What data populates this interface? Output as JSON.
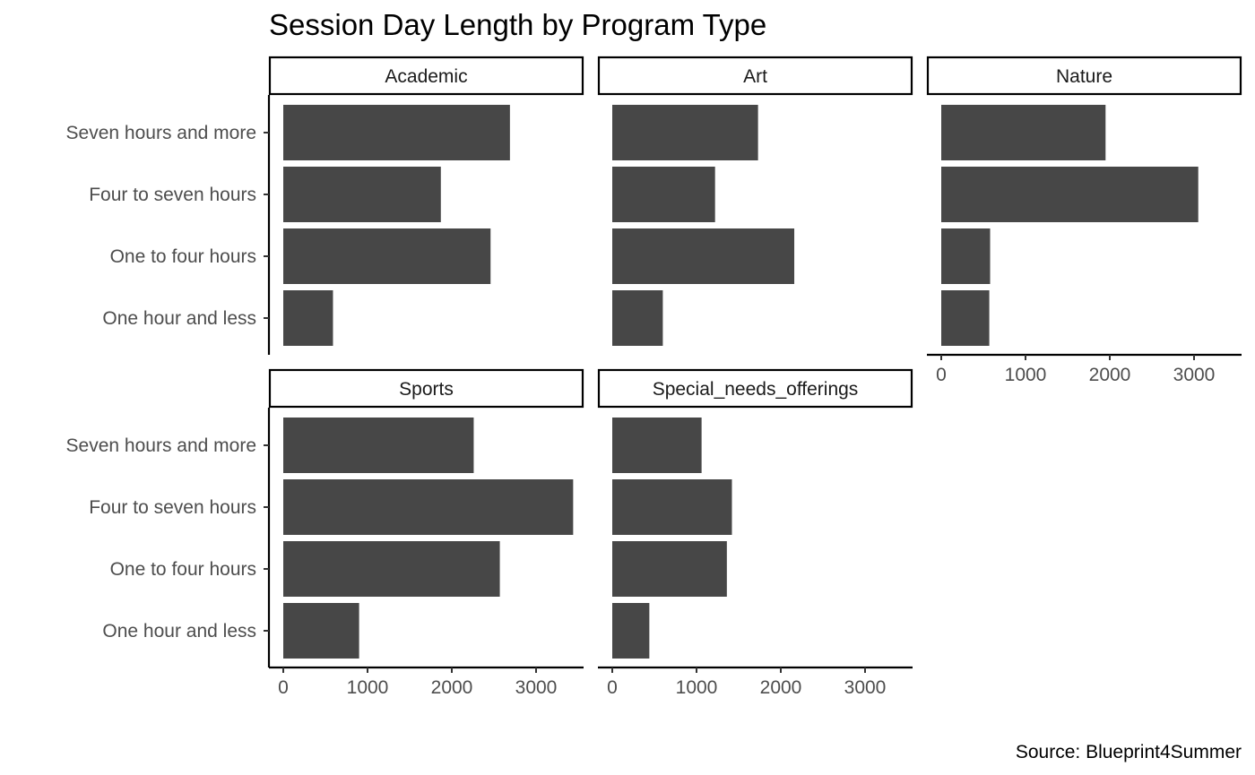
{
  "chart_data": {
    "type": "bar",
    "orientation": "horizontal",
    "title": "Session Day Length by Program Type",
    "caption": "Source: Blueprint4Summer",
    "xlabel": "",
    "ylabel": "",
    "xlim": [
      0,
      3600
    ],
    "xticks": [
      0,
      1000,
      2000,
      3000
    ],
    "xtick_labels": [
      "0",
      "1000",
      "2000",
      "3000"
    ],
    "categories": [
      "Seven hours and more",
      "Four to seven hours",
      "One to four hours",
      "One hour and less"
    ],
    "bar_color": "#474747",
    "grid": false,
    "legend": "none",
    "facets": [
      {
        "name": "Academic",
        "values": [
          2690,
          1870,
          2460,
          590
        ]
      },
      {
        "name": "Art",
        "values": [
          1730,
          1220,
          2160,
          600
        ]
      },
      {
        "name": "Nature",
        "values": [
          1950,
          3050,
          580,
          570
        ]
      },
      {
        "name": "Sports",
        "values": [
          2260,
          3440,
          2570,
          900
        ]
      },
      {
        "name": "Special_needs_offerings",
        "values": [
          1060,
          1420,
          1360,
          440
        ]
      }
    ]
  }
}
